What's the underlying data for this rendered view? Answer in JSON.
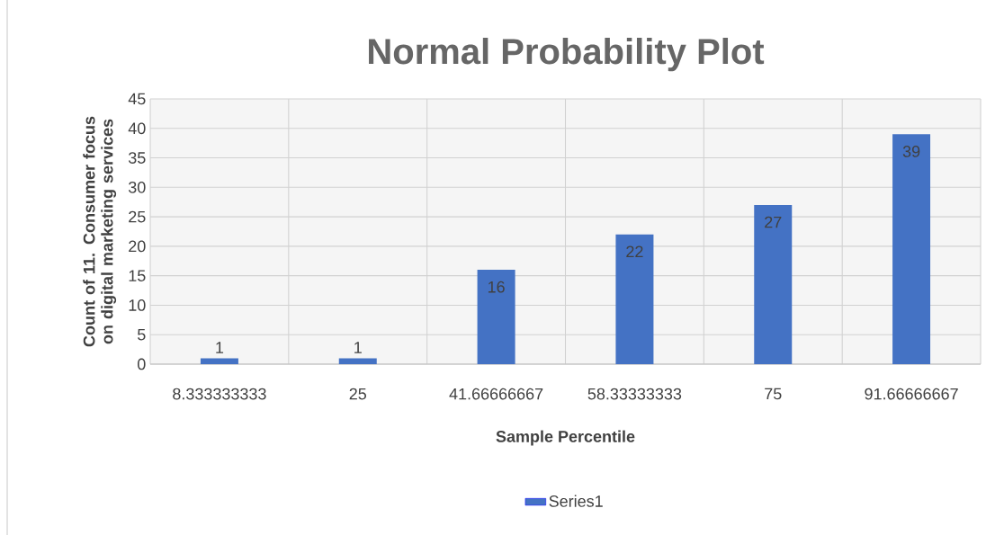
{
  "chart_data": {
    "type": "bar",
    "title": "Normal Probability Plot",
    "xlabel": "Sample Percentile",
    "ylabel": "Count of 11. Consumer focus on digital marketing services",
    "categories": [
      "8.333333333",
      "25",
      "41.66666667",
      "58.33333333",
      "75",
      "91.66666667"
    ],
    "series": [
      {
        "name": "Series1",
        "color": "#4472c4",
        "values": [
          1,
          1,
          16,
          22,
          27,
          39
        ]
      }
    ],
    "ylim": [
      0,
      45
    ],
    "yticks": [
      0,
      5,
      10,
      15,
      20,
      25,
      30,
      35,
      40,
      45
    ],
    "grid": true,
    "legend": "bottom",
    "data_labels": true
  }
}
